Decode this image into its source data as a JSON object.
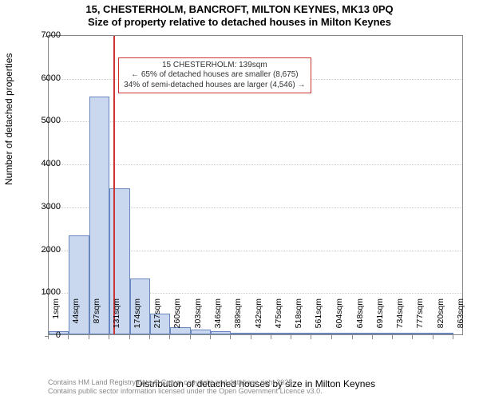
{
  "title": {
    "line1": "15, CHESTERHOLM, BANCROFT, MILTON KEYNES, MK13 0PQ",
    "line2": "Size of property relative to detached houses in Milton Keynes"
  },
  "chart": {
    "type": "histogram",
    "background_color": "#ffffff",
    "grid_color": "#cccccc",
    "axis_color": "#888888",
    "bar_fill": "#c9d8ef",
    "bar_stroke": "#6a88c0",
    "ref_line_color": "#cc3333",
    "ylabel": "Number of detached properties",
    "xlabel": "Distribution of detached houses by size in Milton Keynes",
    "label_fontsize": 12,
    "tick_fontsize": 11,
    "ylim": [
      0,
      7000
    ],
    "ytick_step": 1000,
    "x_ticks": [
      "1sqm",
      "44sqm",
      "87sqm",
      "131sqm",
      "174sqm",
      "217sqm",
      "260sqm",
      "303sqm",
      "346sqm",
      "389sqm",
      "432sqm",
      "475sqm",
      "518sqm",
      "561sqm",
      "604sqm",
      "648sqm",
      "691sqm",
      "734sqm",
      "777sqm",
      "820sqm",
      "863sqm"
    ],
    "x_range": [
      1,
      885
    ],
    "ref_line_x": 139,
    "bars": [
      {
        "x0": 1,
        "x1": 44,
        "value": 80
      },
      {
        "x0": 44,
        "x1": 87,
        "value": 2300
      },
      {
        "x0": 87,
        "x1": 131,
        "value": 5550
      },
      {
        "x0": 131,
        "x1": 174,
        "value": 3400
      },
      {
        "x0": 174,
        "x1": 217,
        "value": 1300
      },
      {
        "x0": 217,
        "x1": 260,
        "value": 480
      },
      {
        "x0": 260,
        "x1": 303,
        "value": 170
      },
      {
        "x0": 303,
        "x1": 346,
        "value": 110
      },
      {
        "x0": 346,
        "x1": 389,
        "value": 70
      },
      {
        "x0": 389,
        "x1": 432,
        "value": 40
      },
      {
        "x0": 432,
        "x1": 475,
        "value": 20
      },
      {
        "x0": 475,
        "x1": 518,
        "value": 12
      },
      {
        "x0": 518,
        "x1": 561,
        "value": 8
      },
      {
        "x0": 561,
        "x1": 604,
        "value": 6
      },
      {
        "x0": 604,
        "x1": 648,
        "value": 5
      },
      {
        "x0": 648,
        "x1": 691,
        "value": 4
      },
      {
        "x0": 691,
        "x1": 734,
        "value": 3
      },
      {
        "x0": 734,
        "x1": 777,
        "value": 2
      },
      {
        "x0": 777,
        "x1": 820,
        "value": 2
      },
      {
        "x0": 820,
        "x1": 863,
        "value": 1
      }
    ],
    "annotation": {
      "line1": "15 CHESTERHOLM: 139sqm",
      "line2": "← 65% of detached houses are smaller (8,675)",
      "line3": "34% of semi-detached houses are larger (4,546) →",
      "box_border": "#cc3333",
      "fontsize": 10
    }
  },
  "footer": {
    "line1": "Contains HM Land Registry data © Crown copyright and database right 2025.",
    "line2": "Contains public sector information licensed under the Open Government Licence v3.0."
  }
}
